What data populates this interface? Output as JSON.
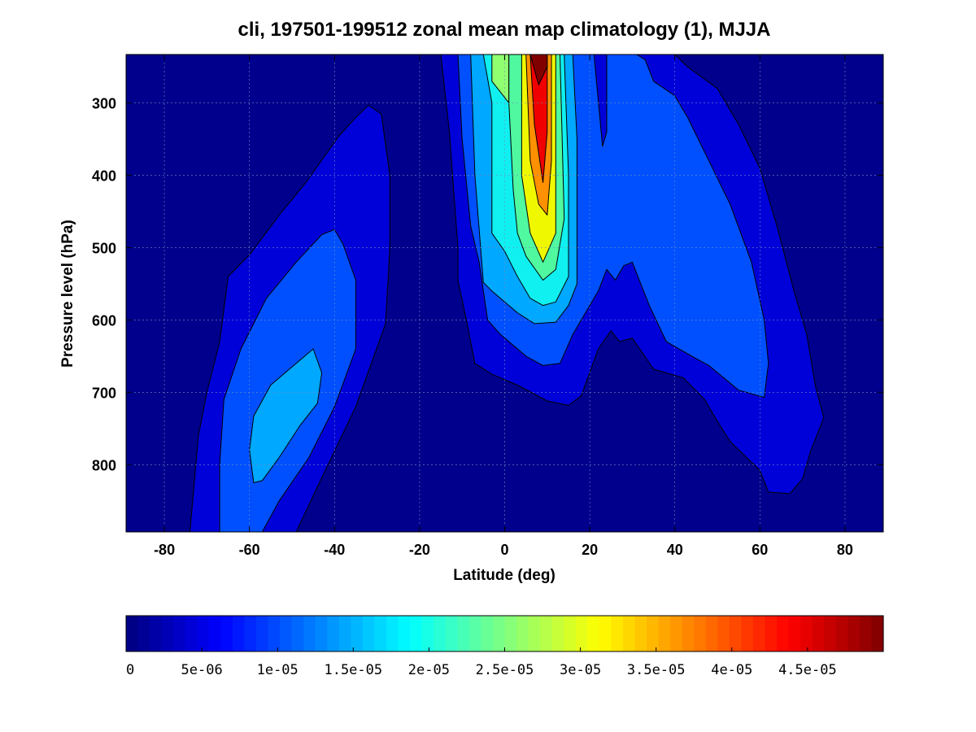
{
  "chart_data": {
    "type": "contour",
    "title": "cli, 197501-199512 zonal mean map climatology (1), MJJA",
    "xlabel": "Latitude (deg)",
    "ylabel": "Pressure level (hPa)",
    "xlim": [
      -89,
      89
    ],
    "ylim": [
      233,
      893
    ],
    "y_reversed": true,
    "grid": true,
    "x_ticks": [
      -80,
      -60,
      -40,
      -20,
      0,
      20,
      40,
      60,
      80
    ],
    "y_ticks": [
      300,
      400,
      500,
      600,
      700,
      800
    ],
    "colormap": "jet",
    "colorbar": {
      "orientation": "horizontal",
      "placement": "bottom",
      "range": [
        0,
        5e-05
      ],
      "tick_values": [
        0,
        5e-06,
        1e-05,
        1.5e-05,
        2e-05,
        2.5e-05,
        3e-05,
        3.5e-05,
        4e-05,
        4.5e-05
      ],
      "tick_labels": [
        "0",
        "5e-06",
        "1e-05",
        "1.5e-05",
        "2e-05",
        "2.5e-05",
        "3e-05",
        "3.5e-05",
        "4e-05",
        "4.5e-05"
      ]
    },
    "contour_levels": [
      0,
      5e-06,
      1e-05,
      1.5e-05,
      2e-05,
      2.5e-05,
      3e-05,
      3.5e-05,
      4e-05,
      4.5e-05
    ],
    "regions": [
      {
        "level": 5e-06,
        "color": "#0000d8",
        "points": [
          [
            -74,
            893
          ],
          [
            -72,
            760
          ],
          [
            -70,
            700
          ],
          [
            -67,
            630
          ],
          [
            -65,
            540
          ],
          [
            -60,
            510
          ],
          [
            -53,
            455
          ],
          [
            -47,
            412
          ],
          [
            -39,
            346
          ],
          [
            -35,
            320
          ],
          [
            -32,
            303
          ],
          [
            -29,
            315
          ],
          [
            -27,
            400
          ],
          [
            -27,
            500
          ],
          [
            -28,
            605
          ],
          [
            -35,
            720
          ],
          [
            -43,
            818
          ],
          [
            -49,
            893
          ]
        ]
      },
      {
        "level": 1e-05,
        "color": "#0050ff",
        "points": [
          [
            -67,
            893
          ],
          [
            -67,
            800
          ],
          [
            -66,
            710
          ],
          [
            -62,
            640
          ],
          [
            -56,
            570
          ],
          [
            -49,
            520
          ],
          [
            -43,
            482
          ],
          [
            -40,
            475
          ],
          [
            -38,
            495
          ],
          [
            -35,
            545
          ],
          [
            -35,
            640
          ],
          [
            -40,
            720
          ],
          [
            -46,
            790
          ],
          [
            -53,
            850
          ],
          [
            -57,
            893
          ]
        ]
      },
      {
        "level": 1.5e-05,
        "color": "#00a8ff",
        "points": [
          [
            -59,
            825
          ],
          [
            -60,
            780
          ],
          [
            -59,
            733
          ],
          [
            -55,
            690
          ],
          [
            -49,
            660
          ],
          [
            -45,
            640
          ],
          [
            -43,
            673
          ],
          [
            -44,
            715
          ],
          [
            -48,
            745
          ],
          [
            -53,
            790
          ],
          [
            -57,
            822
          ]
        ]
      },
      {
        "level": 5e-06,
        "color": "#0000d8",
        "points": [
          [
            -15,
            233
          ],
          [
            -13,
            340
          ],
          [
            -11,
            500
          ],
          [
            -11,
            545
          ],
          [
            -9,
            600
          ],
          [
            -7,
            660
          ],
          [
            -3,
            675
          ],
          [
            3,
            690
          ],
          [
            10,
            712
          ],
          [
            15,
            718
          ],
          [
            18,
            705
          ],
          [
            22,
            640
          ],
          [
            25,
            615
          ],
          [
            27,
            630
          ],
          [
            30,
            625
          ],
          [
            35,
            668
          ],
          [
            42,
            680
          ],
          [
            47,
            710
          ],
          [
            50,
            740
          ],
          [
            53,
            768
          ],
          [
            60,
            808
          ],
          [
            62,
            838
          ],
          [
            67,
            840
          ],
          [
            70,
            820
          ],
          [
            72,
            780
          ],
          [
            75,
            735
          ],
          [
            73,
            690
          ],
          [
            71,
            620
          ],
          [
            68,
            560
          ],
          [
            64,
            470
          ],
          [
            60,
            390
          ],
          [
            55,
            330
          ],
          [
            50,
            280
          ],
          [
            43,
            250
          ],
          [
            40,
            233
          ]
        ]
      },
      {
        "level": 1e-05,
        "color": "#0050ff",
        "points": [
          [
            -11,
            233
          ],
          [
            -10,
            350
          ],
          [
            -8,
            470
          ],
          [
            -6,
            520
          ],
          [
            -4,
            600
          ],
          [
            -1,
            620
          ],
          [
            5,
            650
          ],
          [
            9,
            663
          ],
          [
            13,
            660
          ],
          [
            16,
            620
          ],
          [
            19,
            590
          ],
          [
            22,
            560
          ],
          [
            24,
            530
          ],
          [
            26,
            545
          ],
          [
            28,
            525
          ],
          [
            30,
            520
          ],
          [
            34,
            580
          ],
          [
            38,
            630
          ],
          [
            44,
            650
          ],
          [
            48,
            663
          ],
          [
            55,
            697
          ],
          [
            61,
            707
          ],
          [
            62,
            660
          ],
          [
            61,
            600
          ],
          [
            58,
            520
          ],
          [
            53,
            440
          ],
          [
            48,
            380
          ],
          [
            43,
            320
          ],
          [
            40,
            290
          ],
          [
            35,
            270
          ],
          [
            33,
            240
          ],
          [
            31,
            233
          ],
          [
            24,
            233
          ],
          [
            24,
            340
          ],
          [
            23,
            360
          ],
          [
            21,
            233
          ]
        ]
      },
      {
        "level": 1.5e-05,
        "color": "#00a8ff",
        "points": [
          [
            -8,
            233
          ],
          [
            -7,
            400
          ],
          [
            -5,
            548
          ],
          [
            -3,
            560
          ],
          [
            0,
            575
          ],
          [
            3,
            590
          ],
          [
            7,
            605
          ],
          [
            12,
            603
          ],
          [
            15,
            580
          ],
          [
            17,
            550
          ],
          [
            17,
            450
          ],
          [
            17,
            350
          ],
          [
            16,
            233
          ]
        ]
      },
      {
        "level": 2e-05,
        "color": "#10f0f0",
        "points": [
          [
            -5,
            233
          ],
          [
            -3,
            300
          ],
          [
            -3,
            480
          ],
          [
            0,
            505
          ],
          [
            3,
            540
          ],
          [
            6,
            570
          ],
          [
            9,
            580
          ],
          [
            12,
            575
          ],
          [
            15,
            540
          ],
          [
            15,
            400
          ],
          [
            14,
            233
          ]
        ]
      },
      {
        "level": 2.5e-05,
        "color": "#90ff70",
        "points": [
          [
            -3,
            233
          ],
          [
            -3,
            270
          ],
          [
            -1,
            285
          ],
          [
            1,
            300
          ],
          [
            1,
            233
          ]
        ]
      },
      {
        "level": 2.5e-05,
        "color": "#50f8a0",
        "points": [
          [
            1,
            233
          ],
          [
            1,
            300
          ],
          [
            2,
            420
          ],
          [
            3,
            480
          ],
          [
            5,
            512
          ],
          [
            9,
            545
          ],
          [
            12,
            530
          ],
          [
            14,
            460
          ],
          [
            13,
            233
          ]
        ]
      },
      {
        "level": 3e-05,
        "color": "#f0f800",
        "points": [
          [
            4,
            233
          ],
          [
            4,
            400
          ],
          [
            6,
            480
          ],
          [
            9,
            520
          ],
          [
            12,
            480
          ],
          [
            12,
            233
          ]
        ]
      },
      {
        "level": 3.5e-05,
        "color": "#ff9000",
        "points": [
          [
            5,
            233
          ],
          [
            6,
            380
          ],
          [
            8,
            440
          ],
          [
            10,
            455
          ],
          [
            11,
            380
          ],
          [
            11,
            233
          ]
        ]
      },
      {
        "level": 4e-05,
        "color": "#f00000",
        "points": [
          [
            6,
            233
          ],
          [
            7,
            330
          ],
          [
            9,
            410
          ],
          [
            10,
            340
          ],
          [
            10,
            233
          ]
        ]
      },
      {
        "level": 4.5e-05,
        "color": "#800000",
        "points": [
          [
            6,
            233
          ],
          [
            8,
            275
          ],
          [
            10,
            250
          ],
          [
            10,
            233
          ]
        ]
      }
    ]
  }
}
